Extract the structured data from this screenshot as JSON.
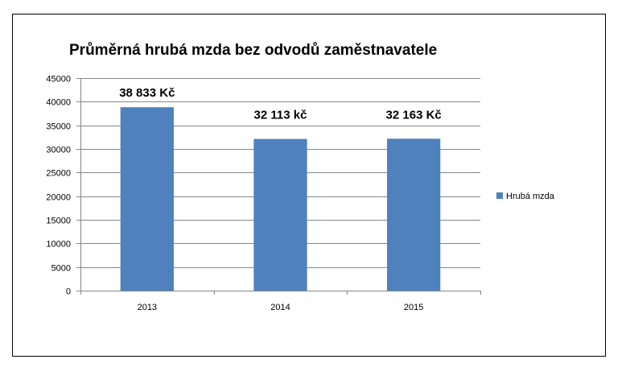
{
  "chart_data": {
    "type": "bar",
    "title": "Průměrná hrubá mzda bez odvodů zaměstnavatele",
    "categories": [
      "2013",
      "2014",
      "2015"
    ],
    "series": [
      {
        "name": "Hrubá mzda",
        "values": [
          38833,
          32113,
          32163
        ],
        "color": "#4F81BD"
      }
    ],
    "data_labels": [
      "38 833 Kč",
      "32 113 kč",
      "32 163 Kč"
    ],
    "y_ticks": [
      0,
      5000,
      10000,
      15000,
      20000,
      25000,
      30000,
      35000,
      40000,
      45000
    ],
    "ylim": [
      0,
      45000
    ],
    "grid": true,
    "grid_color": "#868686",
    "legend_position": "right"
  }
}
